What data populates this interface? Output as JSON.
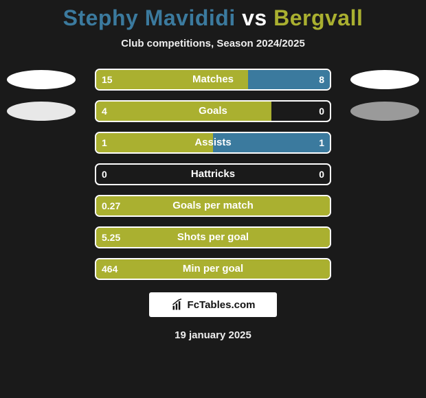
{
  "title": {
    "left": "Stephy Mavididi",
    "vs": " vs ",
    "right": "Bergvall",
    "left_color": "#3b7a9e",
    "right_color": "#aab030"
  },
  "subtitle": "Club competitions, Season 2024/2025",
  "colors": {
    "left_bar": "#aab030",
    "right_bar": "#3b7a9e",
    "track_border": "#ffffff",
    "background": "#1a1a1a",
    "ellipse_left_1": "#ffffff",
    "ellipse_left_2": "#e8e8e8",
    "ellipse_right_1": "#ffffff",
    "ellipse_right_2": "#9a9a9a"
  },
  "rows": [
    {
      "label": "Matches",
      "left": "15",
      "right": "8",
      "left_pct": 65,
      "right_pct": 35,
      "show_ellipses": true,
      "ellipse_row": 1
    },
    {
      "label": "Goals",
      "left": "4",
      "right": "0",
      "left_pct": 75,
      "right_pct": 0,
      "show_ellipses": true,
      "ellipse_row": 2
    },
    {
      "label": "Assists",
      "left": "1",
      "right": "1",
      "left_pct": 50,
      "right_pct": 50,
      "show_ellipses": false
    },
    {
      "label": "Hattricks",
      "left": "0",
      "right": "0",
      "left_pct": 0,
      "right_pct": 0,
      "show_ellipses": false
    },
    {
      "label": "Goals per match",
      "left": "0.27",
      "right": "",
      "left_pct": 100,
      "right_pct": 0,
      "show_ellipses": false
    },
    {
      "label": "Shots per goal",
      "left": "5.25",
      "right": "",
      "left_pct": 100,
      "right_pct": 0,
      "show_ellipses": false
    },
    {
      "label": "Min per goal",
      "left": "464",
      "right": "",
      "left_pct": 100,
      "right_pct": 0,
      "show_ellipses": false
    }
  ],
  "branding": "FcTables.com",
  "date": "19 january 2025"
}
